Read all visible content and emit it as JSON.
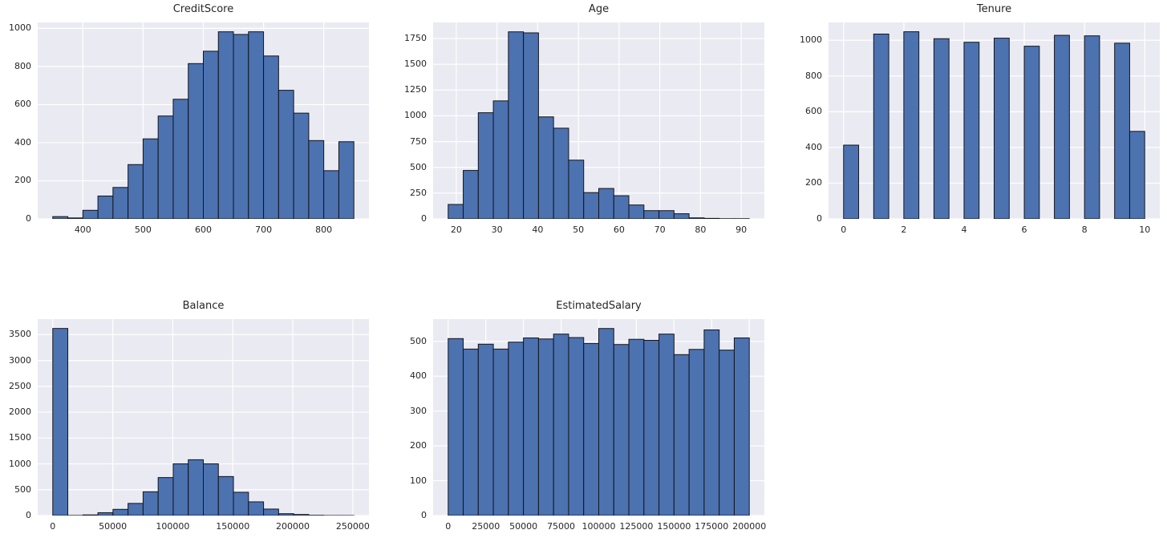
{
  "figure": {
    "background": "#ffffff"
  },
  "style": {
    "bar_fill": "#4c72b0",
    "bar_edge": "#14141c",
    "plot_bg": "#eaeaf2",
    "grid_color": "#ffffff",
    "text_color": "#262626"
  },
  "chart_data": [
    {
      "type": "bar",
      "subtype": "histogram",
      "title": "CreditScore",
      "bin_start": 350,
      "bin_width": 25,
      "counts": [
        12,
        5,
        45,
        120,
        165,
        285,
        420,
        540,
        628,
        815,
        880,
        982,
        968,
        982,
        855,
        675,
        555,
        411,
        253,
        405
      ],
      "xlim": [
        325,
        875
      ],
      "ylim": [
        0,
        1031
      ],
      "xticks": [
        400,
        500,
        600,
        700,
        800
      ],
      "yticks": [
        0,
        200,
        400,
        600,
        800,
        1000
      ],
      "xlabel": "",
      "ylabel": "",
      "grid_on": true,
      "row": 0,
      "col": 0
    },
    {
      "type": "bar",
      "subtype": "histogram",
      "title": "Age",
      "bin_start": 18,
      "bin_width": 3.7,
      "counts": [
        140,
        470,
        1030,
        1145,
        1815,
        1805,
        990,
        880,
        570,
        255,
        295,
        225,
        135,
        80,
        80,
        50,
        10,
        5,
        2,
        2
      ],
      "xlim": [
        14.3,
        95.7
      ],
      "ylim": [
        0,
        1906
      ],
      "xticks": [
        20,
        30,
        40,
        50,
        60,
        70,
        80,
        90
      ],
      "yticks": [
        0,
        250,
        500,
        750,
        1000,
        1250,
        1500,
        1750
      ],
      "xlabel": "",
      "ylabel": "",
      "grid_on": true,
      "row": 0,
      "col": 1
    },
    {
      "type": "bar",
      "subtype": "histogram",
      "title": "Tenure",
      "bin_start": 0,
      "bin_width": 0.5,
      "counts": [
        413,
        0,
        1035,
        0,
        1048,
        0,
        1009,
        0,
        989,
        0,
        1012,
        0,
        967,
        0,
        1028,
        0,
        1025,
        0,
        984,
        490
      ],
      "xlim": [
        -0.5,
        10.5
      ],
      "ylim": [
        0,
        1100
      ],
      "xticks": [
        0,
        2,
        4,
        6,
        8,
        10
      ],
      "yticks": [
        0,
        200,
        400,
        600,
        800,
        1000
      ],
      "xlabel": "",
      "ylabel": "",
      "grid_on": true,
      "row": 0,
      "col": 2
    },
    {
      "type": "bar",
      "subtype": "histogram",
      "title": "Balance",
      "bin_start": 0,
      "bin_width": 12545,
      "counts": [
        3620,
        2,
        12,
        55,
        120,
        235,
        460,
        735,
        1000,
        1080,
        1000,
        755,
        450,
        265,
        125,
        36,
        20,
        5,
        1,
        1
      ],
      "xlim": [
        -12545,
        263445
      ],
      "ylim": [
        0,
        3801
      ],
      "xticks": [
        0,
        50000,
        100000,
        150000,
        200000,
        250000
      ],
      "yticks": [
        0,
        500,
        1000,
        1500,
        2000,
        2500,
        3000,
        3500
      ],
      "xlabel": "",
      "ylabel": "",
      "grid_on": true,
      "row": 1,
      "col": 0
    },
    {
      "type": "bar",
      "subtype": "histogram",
      "title": "EstimatedSalary",
      "bin_start": 0,
      "bin_width": 10000,
      "counts": [
        508,
        478,
        492,
        478,
        498,
        510,
        507,
        521,
        511,
        494,
        537,
        491,
        506,
        503,
        521,
        462,
        477,
        533,
        475,
        510
      ],
      "xlim": [
        -10000,
        210000
      ],
      "ylim": [
        0,
        564
      ],
      "xticks": [
        0,
        25000,
        50000,
        75000,
        100000,
        125000,
        150000,
        175000,
        200000
      ],
      "yticks": [
        0,
        100,
        200,
        300,
        400,
        500
      ],
      "xlabel": "",
      "ylabel": "",
      "grid_on": true,
      "row": 1,
      "col": 1
    }
  ]
}
